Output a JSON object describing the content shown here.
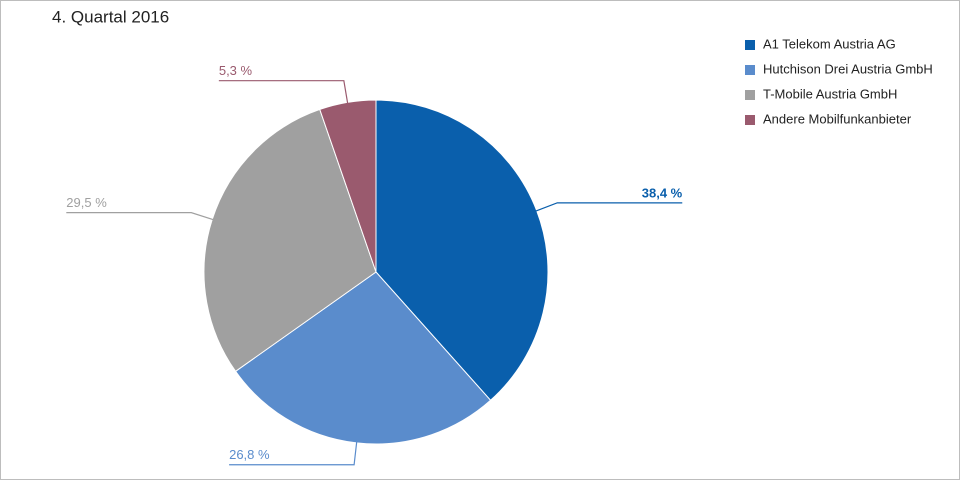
{
  "chart_data": {
    "type": "pie",
    "title": "4. Quartal 2016",
    "categories": [
      "A1 Telekom Austria AG",
      "Hutchison Drei Austria GmbH",
      "T-Mobile Austria GmbH",
      "Andere Mobilfunkanbieter"
    ],
    "values": [
      38.4,
      26.8,
      29.5,
      5.3
    ],
    "value_labels": [
      "38,4 %",
      "26,8 %",
      "29,5 %",
      "5,3 %"
    ],
    "colors": [
      "#0a5fac",
      "#5a8ccc",
      "#a0a0a0",
      "#9a5a6e"
    ],
    "legend": "top-right"
  }
}
